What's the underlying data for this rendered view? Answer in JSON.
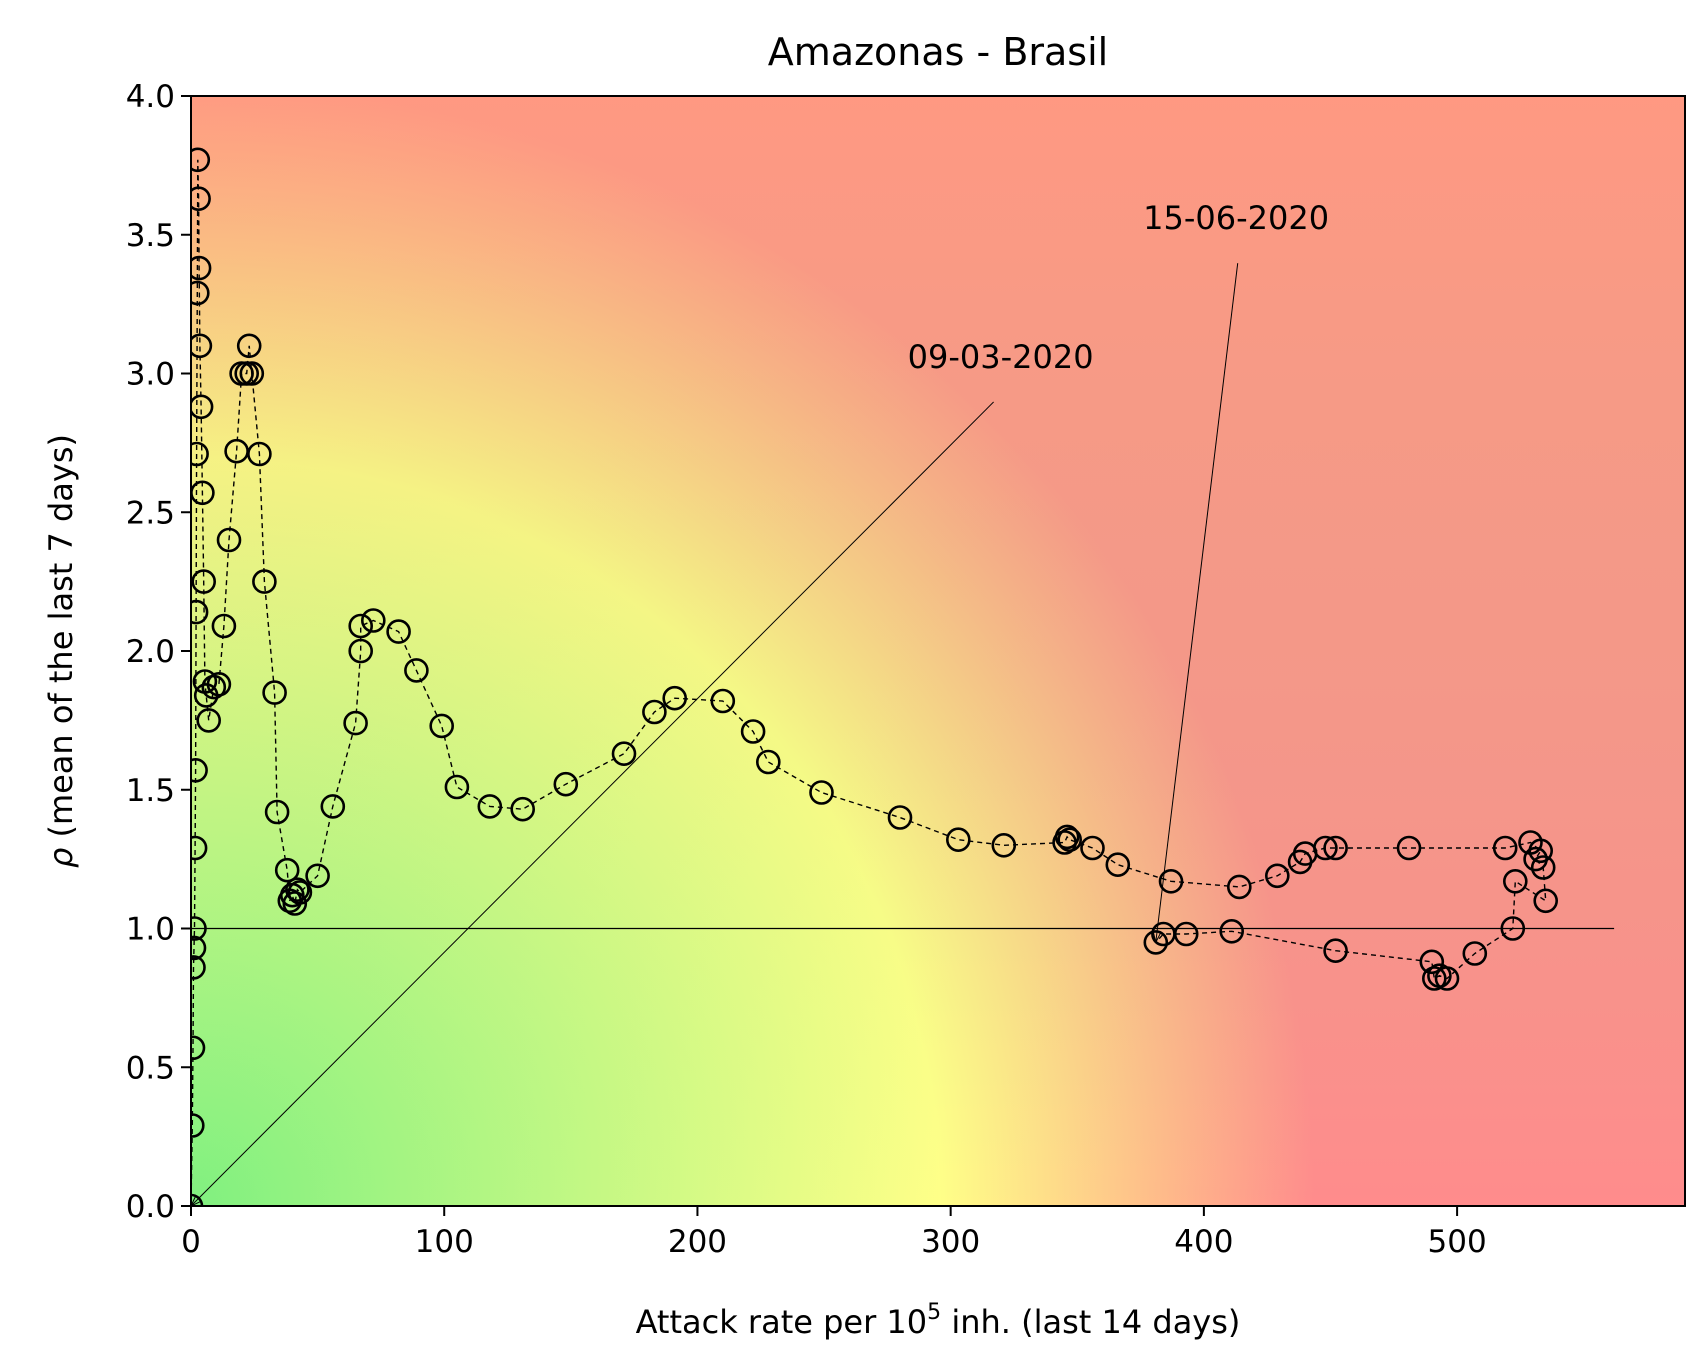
{
  "chart_data": {
    "type": "scatter",
    "title": "Amazonas - Brasil",
    "xlabel_prefix": "Attack rate per 10",
    "xlabel_sup": "5",
    "xlabel_suffix": " inh. (last 14 days)",
    "ylabel_symbol": "ρ",
    "ylabel_text": " (mean of the last 7 days)",
    "xlim": [
      0,
      590
    ],
    "ylim": [
      0,
      4
    ],
    "x_ticks": [
      0,
      100,
      200,
      300,
      400,
      500
    ],
    "x_tick_labels": [
      "0",
      "100",
      "200",
      "300",
      "400",
      "500"
    ],
    "y_ticks": [
      0,
      0.5,
      1,
      1.5,
      2,
      2.5,
      3,
      3.5,
      4
    ],
    "y_tick_labels": [
      "0.0",
      "0.5",
      "1.0",
      "1.5",
      "2.0",
      "2.5",
      "3.0",
      "3.5",
      "4.0"
    ],
    "reference_line": {
      "y": 1.0,
      "x_range": [
        0,
        562
      ]
    },
    "background": {
      "style": "risk-gradient",
      "colors": {
        "low": "#80f080",
        "mid": "#ffff88",
        "high": "#ff8c8c"
      }
    },
    "marker_color": "#000000",
    "annotations": [
      {
        "text": "09-03-2020",
        "point": [
          0,
          0
        ],
        "text_pos": [
          283,
          3.02
        ]
      },
      {
        "text": "15-06-2020",
        "point": [
          381,
          0.95
        ],
        "text_pos": [
          376,
          3.52
        ]
      }
    ],
    "series": [
      {
        "points": [
          [
            0,
            0
          ],
          [
            0.5,
            0.29
          ],
          [
            0.8,
            0.57
          ],
          [
            1,
            0.86
          ],
          [
            1.2,
            0.93
          ],
          [
            1.4,
            1.0
          ],
          [
            1.6,
            1.29
          ],
          [
            1.8,
            1.57
          ],
          [
            2,
            2.14
          ],
          [
            2.2,
            2.71
          ],
          [
            2.5,
            3.29
          ],
          [
            2.7,
            3.77
          ],
          [
            3,
            3.63
          ],
          [
            3.2,
            3.38
          ],
          [
            3.5,
            3.1
          ],
          [
            4,
            2.88
          ],
          [
            4.5,
            2.57
          ],
          [
            5,
            2.25
          ],
          [
            5.5,
            1.89
          ],
          [
            6,
            1.84
          ],
          [
            7,
            1.75
          ],
          [
            9,
            1.87
          ],
          [
            11,
            1.88
          ],
          [
            13,
            2.09
          ],
          [
            15,
            2.4
          ],
          [
            18,
            2.72
          ],
          [
            20,
            3.0
          ],
          [
            22,
            3.0
          ],
          [
            23,
            3.1
          ],
          [
            24,
            3.0
          ],
          [
            27,
            2.71
          ],
          [
            29,
            2.25
          ],
          [
            33,
            1.85
          ],
          [
            34,
            1.42
          ],
          [
            38,
            1.21
          ],
          [
            39,
            1.1
          ],
          [
            40,
            1.12
          ],
          [
            41,
            1.09
          ],
          [
            42,
            1.14
          ],
          [
            43,
            1.13
          ],
          [
            50,
            1.19
          ],
          [
            56,
            1.44
          ],
          [
            65,
            1.74
          ],
          [
            67,
            2.0
          ],
          [
            67,
            2.09
          ],
          [
            72,
            2.11
          ],
          [
            82,
            2.07
          ],
          [
            89,
            1.93
          ],
          [
            99,
            1.73
          ],
          [
            105,
            1.51
          ],
          [
            118,
            1.44
          ],
          [
            131,
            1.43
          ],
          [
            148,
            1.52
          ],
          [
            171,
            1.63
          ],
          [
            183,
            1.78
          ],
          [
            191,
            1.83
          ],
          [
            210,
            1.82
          ],
          [
            222,
            1.71
          ],
          [
            228,
            1.6
          ],
          [
            249,
            1.49
          ],
          [
            280,
            1.4
          ],
          [
            303,
            1.32
          ],
          [
            321,
            1.3
          ],
          [
            345,
            1.31
          ],
          [
            346,
            1.33
          ],
          [
            347,
            1.32
          ],
          [
            356,
            1.29
          ],
          [
            366,
            1.23
          ],
          [
            387,
            1.17
          ],
          [
            414,
            1.15
          ],
          [
            429,
            1.19
          ],
          [
            438,
            1.24
          ],
          [
            440,
            1.27
          ],
          [
            448,
            1.29
          ],
          [
            452,
            1.29
          ],
          [
            481,
            1.29
          ],
          [
            519,
            1.29
          ],
          [
            529,
            1.31
          ],
          [
            533,
            1.28
          ],
          [
            531,
            1.25
          ],
          [
            534,
            1.22
          ],
          [
            535,
            1.1
          ],
          [
            523,
            1.17
          ],
          [
            522,
            1.0
          ],
          [
            507,
            0.91
          ],
          [
            496,
            0.82
          ],
          [
            493,
            0.83
          ],
          [
            491,
            0.82
          ],
          [
            490,
            0.88
          ],
          [
            452,
            0.92
          ],
          [
            411,
            0.99
          ],
          [
            393,
            0.98
          ],
          [
            384,
            0.98
          ],
          [
            381,
            0.95
          ]
        ]
      }
    ]
  }
}
